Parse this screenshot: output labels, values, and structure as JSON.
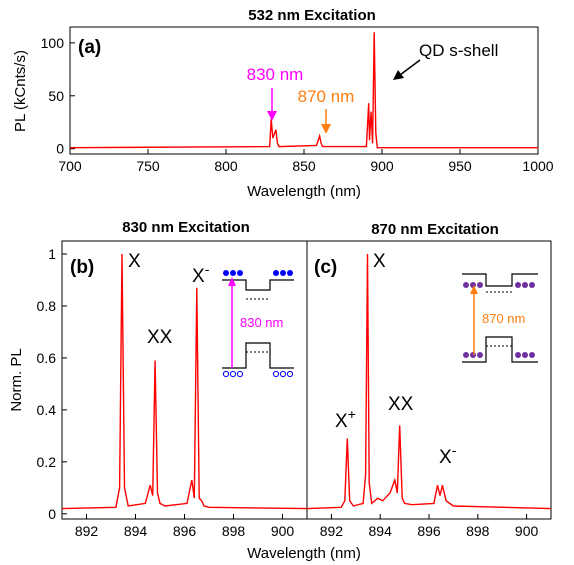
{
  "colors": {
    "trace": "#ff0000",
    "magenta": "#ff00ff",
    "orange": "#ff7f0e",
    "axis": "#000000",
    "dots": "#0000ff",
    "dots_purple": "#7030a0"
  },
  "chart_data": [
    {
      "type": "line",
      "panel": "(a)",
      "title": "532 nm Excitation",
      "xlabel": "Wavelength (nm)",
      "ylabel": "PL (kCnts/s)",
      "xlim": [
        700,
        1000
      ],
      "ylim": [
        -5,
        115
      ],
      "xticks": [
        "700",
        "750",
        "800",
        "850",
        "900",
        "950",
        "1000"
      ],
      "yticks": [
        "0",
        "50",
        "100"
      ],
      "series": [
        {
          "x": [
            700,
            828,
            829,
            830,
            832,
            833,
            834,
            858,
            860,
            861,
            862,
            890,
            891.5,
            892,
            893,
            894,
            895,
            896,
            897,
            1000
          ],
          "y": [
            1,
            2,
            28,
            10,
            18,
            5,
            2,
            3,
            12,
            5,
            2,
            2,
            43,
            8,
            35,
            5,
            110,
            15,
            1,
            1
          ]
        }
      ],
      "annotations": [
        "830 nm",
        "870 nm",
        "QD s-shell"
      ]
    },
    {
      "type": "line",
      "panel": "(b)",
      "title": "830 nm Excitation",
      "xlabel": "Wavelength (nm)",
      "ylabel": "Norm. PL",
      "xlim": [
        891,
        901
      ],
      "ylim": [
        -0.02,
        1.05
      ],
      "xticks": [
        "892",
        "894",
        "896",
        "898",
        "900"
      ],
      "yticks": [
        "0",
        "0.2",
        "0.4",
        "0.6",
        "0.8",
        "1"
      ],
      "series": [
        {
          "x": [
            891,
            893.2,
            893.35,
            893.45,
            893.55,
            893.7,
            894.4,
            894.6,
            894.7,
            894.8,
            894.9,
            895.0,
            895.2,
            896.1,
            896.3,
            896.4,
            896.5,
            896.6,
            896.7,
            896.8,
            897.0,
            901
          ],
          "y": [
            0.02,
            0.025,
            0.1,
            1.0,
            0.1,
            0.03,
            0.04,
            0.11,
            0.07,
            0.59,
            0.08,
            0.04,
            0.03,
            0.04,
            0.13,
            0.06,
            0.87,
            0.06,
            0.05,
            0.03,
            0.025,
            0.02
          ]
        }
      ],
      "annotations": [
        "X",
        "XX",
        "X⁻",
        "830 nm"
      ]
    },
    {
      "type": "line",
      "panel": "(c)",
      "title": "870 nm Excitation",
      "xlabel": "Wavelength (nm)",
      "xlim": [
        891,
        901
      ],
      "ylim": [
        -0.02,
        1.05
      ],
      "xticks": [
        "892",
        "894",
        "896",
        "898",
        "900"
      ],
      "series": [
        {
          "x": [
            891,
            892.4,
            892.55,
            892.65,
            892.75,
            892.9,
            893.3,
            893.4,
            893.48,
            893.55,
            893.65,
            893.9,
            894.1,
            894.4,
            894.6,
            894.7,
            894.8,
            894.9,
            895.0,
            895.3,
            896.2,
            896.35,
            896.45,
            896.55,
            896.7,
            897.0,
            901
          ],
          "y": [
            0.02,
            0.025,
            0.05,
            0.29,
            0.05,
            0.03,
            0.04,
            0.15,
            1.0,
            0.12,
            0.04,
            0.06,
            0.05,
            0.08,
            0.13,
            0.08,
            0.34,
            0.06,
            0.04,
            0.035,
            0.04,
            0.11,
            0.07,
            0.11,
            0.05,
            0.03,
            0.02
          ]
        }
      ],
      "annotations": [
        "X",
        "X⁺",
        "XX",
        "X⁻",
        "870 nm"
      ]
    }
  ],
  "labels": {
    "title_a": "532 nm Excitation",
    "title_b": "830 nm Excitation",
    "title_c": "870 nm Excitation",
    "panel_a": "(a)",
    "panel_b": "(b)",
    "panel_c": "(c)",
    "ylabel_a": "PL (kCnts/s)",
    "ylabel_b": "Norm. PL",
    "xlabel_a": "Wavelength (nm)",
    "xlabel_bc": "Wavelength (nm)",
    "ann_830": "830 nm",
    "ann_870": "870 nm",
    "ann_qd": "QD s-shell",
    "peak_x": "X",
    "peak_xx": "XX",
    "peak_xminus_base": "X",
    "peak_xminus_sup": "-",
    "peak_xplus_base": "X",
    "peak_xplus_sup": "+",
    "inset_830": "830 nm",
    "inset_870": "870 nm"
  }
}
